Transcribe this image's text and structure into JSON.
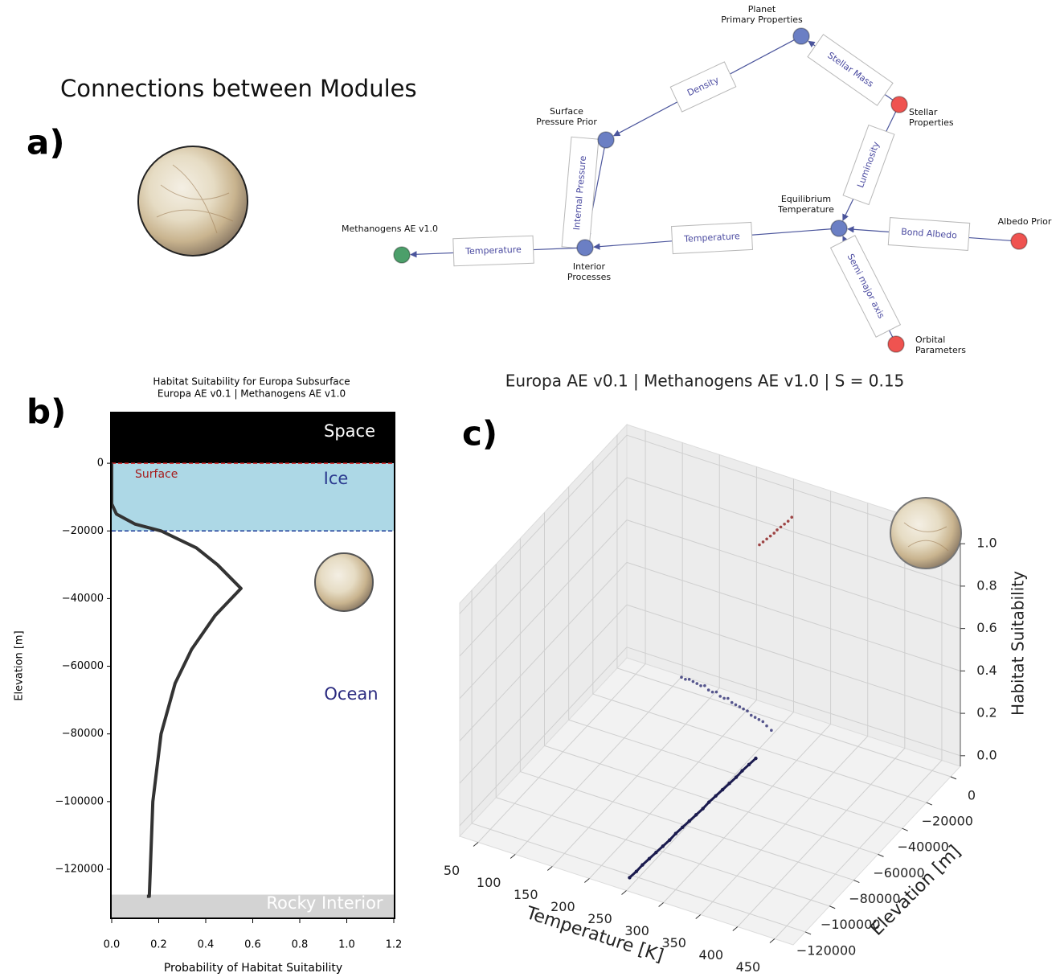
{
  "panel_labels": [
    "a)",
    "b)",
    "c)"
  ],
  "diagram": {
    "title": "Connections between Modules",
    "nodes": [
      {
        "label": [
          "Planet",
          "Primary Properties"
        ],
        "color": "#6b7fc4"
      },
      {
        "label": [
          "Stellar",
          "Properties"
        ],
        "color": "#ef5350"
      },
      {
        "label": [
          "Surface",
          "Pressure Prior"
        ],
        "color": "#6b7fc4"
      },
      {
        "label": [
          "Equilibrium",
          "Temperature"
        ],
        "color": "#6b7fc4"
      },
      {
        "label": [
          "Albedo Prior"
        ],
        "color": "#ef5350"
      },
      {
        "label": [
          "Interior",
          "Processes"
        ],
        "color": "#6b7fc4"
      },
      {
        "label": [
          "Methanogens AE v1.0"
        ],
        "color": "#4c9f6a"
      },
      {
        "label": [
          "Orbital",
          "Parameters"
        ],
        "color": "#ef5350"
      }
    ],
    "edges": [
      {
        "from": 1,
        "to": 0,
        "label": "Stellar Mass"
      },
      {
        "from": 0,
        "to": 2,
        "label": "Density"
      },
      {
        "from": 1,
        "to": 3,
        "label": "Luminosity"
      },
      {
        "from": 2,
        "to": 5,
        "label": "Internal Pressure"
      },
      {
        "from": 4,
        "to": 3,
        "label": "Bond Albedo"
      },
      {
        "from": 7,
        "to": 3,
        "label": "Semi major axis"
      },
      {
        "from": 3,
        "to": 5,
        "label": "Temperature"
      },
      {
        "from": 5,
        "to": 6,
        "label": "Temperature"
      }
    ]
  },
  "chart_data": [
    {
      "type": "profile",
      "title": [
        "Habitat Suitability for Europa Subsurface",
        "Europa AE v0.1 | Methanogens AE v1.0"
      ],
      "xlabel": "Probability of Habitat Suitability",
      "ylabel": "Elevation [m]",
      "xlim": [
        0,
        1.2
      ],
      "ylim": [
        -134500,
        15000
      ],
      "xticks": [
        {
          "value": 0,
          "label": "0.0"
        },
        {
          "value": 0.2,
          "label": "0.2"
        },
        {
          "value": 0.4,
          "label": "0.4"
        },
        {
          "value": 0.6,
          "label": "0.6"
        },
        {
          "value": 0.8,
          "label": "0.8"
        },
        {
          "value": 1.0,
          "label": "1.0"
        },
        {
          "value": 1.2,
          "label": "1.2"
        }
      ],
      "yticks": [
        0,
        {
          "value": -20000,
          "label": "−20000"
        },
        {
          "value": -40000,
          "label": "−40000"
        },
        {
          "value": -60000,
          "label": "−60000"
        },
        {
          "value": -80000,
          "label": "−80000"
        },
        {
          "value": -100000,
          "label": "−100000"
        },
        {
          "value": -120000,
          "label": "−120000"
        }
      ],
      "regions": [
        {
          "name": "Space",
          "color": "#000000",
          "label_color": "#ffffff",
          "bottom": 0
        },
        {
          "name": "Ice",
          "color": "#add8e6",
          "label_color": "#2b3a8f",
          "bottom": -20000,
          "top": 0
        },
        {
          "name": "Ocean",
          "label_color": "#2b2b80",
          "bottom": -127500,
          "top": -20000
        },
        {
          "name": "Rocky Interior",
          "color": "#d3d3d3",
          "label_color": "#ffffff",
          "top": -127500
        }
      ],
      "hlines": [
        {
          "value": 0,
          "color": "#d62728"
        },
        {
          "value": -20000,
          "color": "#1f3d99"
        }
      ],
      "annotations": [
        {
          "text": "Surface",
          "color": "#a61c1c"
        }
      ],
      "series": [
        {
          "color": "#333333",
          "values": [
            0,
            0,
            0.02,
            0.1,
            0.21,
            0.36,
            0.45,
            0.55,
            0.44,
            0.34,
            0.27,
            0.21,
            0.175,
            0.16,
            0.15
          ],
          "elevation": [
            0,
            -12000,
            -15000,
            -18000,
            -20000,
            -25000,
            -30000,
            -37000,
            -45000,
            -55000,
            -65000,
            -80000,
            -100000,
            -128000,
            -128000
          ]
        }
      ]
    },
    {
      "type": "scatter3d",
      "title": "Europa AE v0.1 | Methanogens AE v1.0 | S = 0.15",
      "xlabel": "Temperature [K]",
      "ylabel": "Elevation [m]",
      "zlabel": "Habitat Suitability",
      "xlim": [
        25,
        475
      ],
      "ylim": [
        -130000,
        8000
      ],
      "zlim": [
        -0.05,
        1.05
      ],
      "xticks": [
        50,
        100,
        150,
        200,
        250,
        300,
        350,
        400,
        450
      ],
      "yticks": [
        0,
        {
          "value": -20000,
          "label": "−20000"
        },
        {
          "value": -40000,
          "label": "−40000"
        },
        {
          "value": -60000,
          "label": "−60000"
        },
        {
          "value": -80000,
          "label": "−80000"
        },
        {
          "value": -100000,
          "label": "−100000"
        },
        {
          "value": -120000,
          "label": "−120000"
        }
      ],
      "zticks": [
        {
          "value": 0,
          "label": "0.0"
        },
        {
          "value": 0.2,
          "label": "0.2"
        },
        {
          "value": 0.4,
          "label": "0.4"
        },
        {
          "value": 0.6,
          "label": "0.6"
        },
        {
          "value": 0.8,
          "label": "0.8"
        },
        {
          "value": 1.0,
          "label": "1.0"
        }
      ],
      "series": [
        {
          "color": "#1b1b4f",
          "x": [
            251,
            252,
            252,
            253,
            254,
            255,
            256,
            256,
            257,
            258,
            259,
            260,
            260,
            261,
            262,
            263,
            264,
            264,
            265,
            266
          ],
          "y": [
            -128000,
            -123000,
            -118000,
            -113000,
            -108000,
            -103000,
            -98000,
            -93000,
            -88000,
            -83000,
            -78000,
            -73000,
            -68000,
            -63000,
            -58000,
            -53000,
            -48000,
            -43000,
            -38000,
            -33000
          ],
          "z": [
            0,
            0,
            0,
            0,
            0,
            0,
            0,
            0,
            0,
            0,
            0,
            0,
            0,
            0,
            0,
            0,
            0,
            0,
            0,
            0
          ]
        },
        {
          "color": "#2e2e73",
          "x": [
            203,
            207,
            211,
            215,
            219,
            223,
            227,
            231,
            235,
            239,
            243,
            247,
            251,
            255,
            259,
            263,
            267,
            271,
            275,
            279,
            283,
            287,
            291,
            296
          ],
          "y": [
            -55800,
            -55000,
            -54300,
            -53600,
            -52800,
            -52100,
            -51300,
            -50600,
            -49800,
            -49000,
            -48300,
            -47500,
            -46800,
            -46000,
            -45300,
            -44500,
            -43800,
            -43000,
            -42300,
            -41500,
            -40800,
            -40000,
            -39300,
            -38500
          ],
          "z": [
            0.45,
            0.44,
            0.44,
            0.43,
            0.42,
            0.41,
            0.41,
            0.39,
            0.38,
            0.38,
            0.36,
            0.35,
            0.35,
            0.33,
            0.32,
            0.31,
            0.3,
            0.29,
            0.27,
            0.26,
            0.25,
            0.24,
            0.22,
            0.2
          ]
        },
        {
          "color": "#8b1c1c",
          "x": [
            258,
            260,
            262,
            264,
            266,
            267,
            269,
            271,
            273,
            275
          ],
          "y": [
            -25100,
            -23300,
            -21500,
            -19700,
            -17900,
            -16000,
            -14200,
            -12400,
            -10600,
            -8800
          ],
          "z": [
            0.95,
            0.955,
            0.96,
            0.965,
            0.97,
            0.975,
            0.98,
            0.985,
            0.99,
            1.0
          ]
        }
      ]
    }
  ]
}
